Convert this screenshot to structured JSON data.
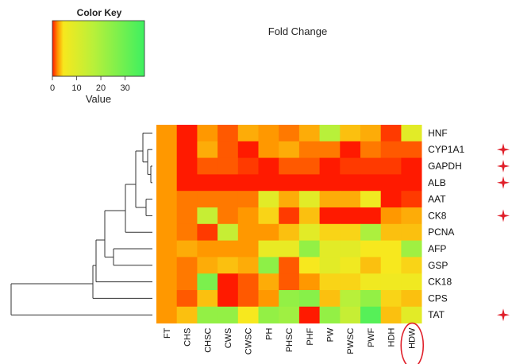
{
  "chart_data": {
    "type": "heatmap",
    "title": "Fold Change",
    "color_key": {
      "title": "Color Key",
      "label": "Value",
      "ticks": [
        "0",
        "10",
        "20",
        "30"
      ],
      "range": [
        0,
        38
      ],
      "colors": [
        "#ff1a00",
        "#ff9800",
        "#f7e81e",
        "#b8f03a",
        "#3df060"
      ]
    },
    "rows": [
      "HNF",
      "CYP1A1",
      "GAPDH",
      "ALB",
      "AAT",
      "CK8",
      "PCNA",
      "AFP",
      "GSP",
      "CK18",
      "CPS",
      "TAT"
    ],
    "columns": [
      "FT",
      "CHS",
      "CHSC",
      "CWS",
      "CWSC",
      "PH",
      "PHSC",
      "PHF",
      "PW",
      "PWSC",
      "PWF",
      "HDH",
      "HDW"
    ],
    "values": [
      [
        5,
        1,
        5,
        3,
        6,
        5,
        4,
        6,
        18,
        7,
        6,
        2,
        12
      ],
      [
        5,
        1,
        6,
        3,
        1,
        5,
        6,
        4,
        4,
        1,
        4,
        3,
        3
      ],
      [
        5,
        1,
        3,
        3,
        2,
        1,
        3,
        3,
        1,
        2,
        2,
        2,
        1
      ],
      [
        5,
        1,
        1,
        1,
        1,
        1,
        1,
        1,
        1,
        1,
        1,
        1,
        1
      ],
      [
        5,
        4,
        4,
        4,
        4,
        12,
        6,
        12,
        6,
        6,
        10,
        1,
        2
      ],
      [
        5,
        4,
        16,
        4,
        5,
        8,
        2,
        7,
        1,
        1,
        1,
        5,
        6
      ],
      [
        5,
        4,
        2,
        16,
        5,
        5,
        7,
        12,
        8,
        8,
        20,
        7,
        7
      ],
      [
        5,
        6,
        5,
        5,
        5,
        11,
        11,
        24,
        12,
        12,
        9,
        9,
        22
      ],
      [
        5,
        4,
        6,
        7,
        6,
        25,
        3,
        9,
        12,
        10,
        7,
        9,
        8
      ],
      [
        5,
        4,
        28,
        1,
        3,
        6,
        3,
        5,
        8,
        8,
        10,
        10,
        10
      ],
      [
        5,
        3,
        7,
        1,
        3,
        5,
        24,
        26,
        7,
        18,
        24,
        8,
        7
      ],
      [
        5,
        7,
        24,
        24,
        9,
        24,
        22,
        1,
        24,
        16,
        34,
        7,
        12
      ]
    ],
    "dendrogram_order": [
      "HNF",
      "CYP1A1",
      "GAPDH",
      "ALB",
      "AAT",
      "CK8",
      "PCNA",
      "AFP",
      "GSP",
      "CK18",
      "CPS",
      "TAT"
    ],
    "marked_rows": [
      "CYP1A1",
      "GAPDH",
      "ALB",
      "CK8",
      "TAT"
    ],
    "marked_column": "HDW",
    "marker_color": "#e0202a"
  }
}
